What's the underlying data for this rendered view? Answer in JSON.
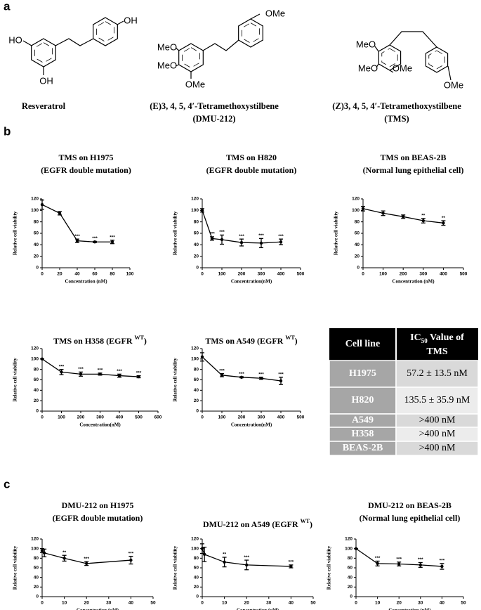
{
  "panels": [
    "a",
    "b",
    "c"
  ],
  "structures": [
    {
      "name": "Resveratrol",
      "substituents": [
        "HO",
        "OH",
        "OH"
      ]
    },
    {
      "name": "(E)3, 4, 5, 4′-Tetramethoxystilbene",
      "subname": "(DMU-212)",
      "substituents": [
        "MeO",
        "MeO",
        "OMe",
        "OMe"
      ]
    },
    {
      "name": "(Z)3, 4, 5, 4′-Tetramethoxystilbene",
      "subname": "(TMS)",
      "substituents": [
        "MeO",
        "MeO",
        "OMe",
        "OMe"
      ]
    }
  ],
  "chart_data": [
    {
      "type": "line",
      "title": "TMS on H1975",
      "subtitle": "(EGFR double mutation)",
      "ylabel": "Relative cell viability",
      "xlabel": "Concentration (nM)",
      "x": [
        0,
        20,
        40,
        60,
        80
      ],
      "values": [
        110,
        95,
        47,
        45,
        45
      ],
      "errors": [
        8,
        3,
        3,
        1,
        3
      ],
      "annotations": [
        null,
        null,
        "***",
        "***",
        "***"
      ],
      "xlim": [
        0,
        100
      ],
      "xticks": [
        0,
        20,
        40,
        60,
        80,
        100
      ],
      "ylim": [
        0,
        120
      ],
      "yticks": [
        0,
        20,
        40,
        60,
        80,
        100,
        120
      ],
      "color": "#000000"
    },
    {
      "type": "line",
      "title": "TMS on H820",
      "subtitle": "(EGFR double mutation)",
      "ylabel": "Relative cell viability",
      "xlabel": "Concentration(nM)",
      "x": [
        0,
        50,
        100,
        200,
        300,
        400
      ],
      "values": [
        100,
        51,
        49,
        44,
        43,
        45
      ],
      "errors": [
        3,
        3,
        8,
        6,
        8,
        5
      ],
      "annotations": [
        null,
        "***",
        "***",
        "***",
        "***",
        "***"
      ],
      "xlim": [
        0,
        500
      ],
      "xticks": [
        0,
        100,
        200,
        300,
        400,
        500
      ],
      "ylim": [
        0,
        120
      ],
      "yticks": [
        0,
        20,
        40,
        60,
        80,
        100,
        120
      ],
      "color": "#000000"
    },
    {
      "type": "line",
      "title": "TMS on BEAS-2B",
      "subtitle": "(Normal lung epithelial cell)",
      "ylabel": "Relative cell viability",
      "xlabel": "Concentration (nM)",
      "x": [
        0,
        100,
        200,
        300,
        400
      ],
      "values": [
        103,
        95,
        89,
        82,
        78
      ],
      "errors": [
        4,
        4,
        3,
        4,
        4
      ],
      "annotations": [
        null,
        null,
        null,
        "**",
        "**"
      ],
      "xlim": [
        0,
        500
      ],
      "xticks": [
        0,
        100,
        200,
        300,
        400,
        500
      ],
      "ylim": [
        0,
        120
      ],
      "yticks": [
        0,
        20,
        40,
        60,
        80,
        100,
        120
      ],
      "color": "#000000"
    },
    {
      "type": "line",
      "title": "TMS on H358 (EGFR",
      "title_superscript": "WT",
      "title_end": ")",
      "ylabel": "Relative cell viability",
      "xlabel": "Concentration(nM)",
      "x": [
        0,
        100,
        200,
        300,
        400,
        500
      ],
      "values": [
        100,
        75,
        71,
        71,
        68,
        66
      ],
      "errors": [
        0,
        5,
        4,
        2,
        3,
        2
      ],
      "annotations": [
        null,
        "***",
        "***",
        "***",
        "***",
        "***"
      ],
      "xlim": [
        0,
        600
      ],
      "xticks": [
        0,
        100,
        200,
        300,
        400,
        500,
        600
      ],
      "ylim": [
        0,
        120
      ],
      "yticks": [
        0,
        20,
        40,
        60,
        80,
        100,
        120
      ],
      "color": "#000000"
    },
    {
      "type": "line",
      "title": "TMS on A549 (EGFR",
      "title_superscript": "WT",
      "title_end": ")",
      "ylabel": "Relative cell viability",
      "xlabel": "Concentration(nM)",
      "x": [
        0,
        100,
        200,
        300,
        400
      ],
      "values": [
        104,
        69,
        65,
        63,
        58
      ],
      "errors": [
        8,
        3,
        1,
        2,
        7
      ],
      "annotations": [
        null,
        "***",
        "***",
        "***",
        "***"
      ],
      "xlim": [
        0,
        500
      ],
      "xticks": [
        0,
        100,
        200,
        300,
        400,
        500
      ],
      "ylim": [
        0,
        120
      ],
      "yticks": [
        0,
        20,
        40,
        60,
        80,
        100,
        120
      ],
      "color": "#000000"
    },
    {
      "type": "line",
      "title": "DMU-212 on H1975",
      "subtitle": "(EGFR double mutation)",
      "ylabel": "Relative cell viability",
      "xlabel": "Concentration (μM)",
      "x": [
        0,
        1,
        10,
        20,
        40
      ],
      "values": [
        96,
        91,
        80,
        69,
        76
      ],
      "errors": [
        4,
        8,
        6,
        4,
        8
      ],
      "annotations": [
        null,
        null,
        "**",
        "***",
        "***"
      ],
      "xlim": [
        0,
        50
      ],
      "xticks": [
        0,
        10,
        20,
        30,
        40,
        50
      ],
      "ylim": [
        0,
        120
      ],
      "yticks": [
        0,
        20,
        40,
        60,
        80,
        100,
        120
      ],
      "color": "#000000"
    },
    {
      "type": "line",
      "title": "DMU-212 on A549 (EGFR",
      "title_superscript": "WT",
      "title_end": ")",
      "ylabel": "Relative cell viability",
      "xlabel": "Concentration (μM)",
      "x": [
        0,
        1,
        10,
        20,
        40
      ],
      "values": [
        100,
        88,
        72,
        66,
        63
      ],
      "errors": [
        10,
        15,
        10,
        10,
        3
      ],
      "annotations": [
        null,
        null,
        "**",
        "***",
        "***"
      ],
      "xlim": [
        0,
        50
      ],
      "xticks": [
        0,
        10,
        20,
        30,
        40,
        50
      ],
      "ylim": [
        0,
        120
      ],
      "yticks": [
        0,
        20,
        40,
        60,
        80,
        100,
        120
      ],
      "color": "#000000"
    },
    {
      "type": "line",
      "title": "DMU-212 on BEAS-2B",
      "subtitle": "(Normal lung epithelial cell)",
      "ylabel": "Relative cell viability",
      "xlabel": "Concentration (μM)",
      "x": [
        0,
        10,
        20,
        30,
        40
      ],
      "values": [
        100,
        69,
        68,
        66,
        63
      ],
      "errors": [
        0,
        5,
        4,
        5,
        6
      ],
      "annotations": [
        null,
        "***",
        "***",
        "***",
        "***"
      ],
      "xlim": [
        0,
        50
      ],
      "xticks": [
        0,
        10,
        20,
        30,
        40,
        50
      ],
      "ylim": [
        0,
        120
      ],
      "yticks": [
        0,
        20,
        40,
        60,
        80,
        100,
        120
      ],
      "color": "#000000"
    }
  ],
  "table": {
    "header": {
      "cell_line": "Cell line",
      "ic": "IC",
      "ic_subscript": "50",
      "ic_rest": " Value  of",
      "ic_line2": "TMS"
    },
    "rows": [
      [
        "H1975",
        "57.2 ± 13.5 nM"
      ],
      [
        "H820",
        "135.5 ± 35.9 nM"
      ],
      [
        "A549",
        ">400 nM"
      ],
      [
        "H358",
        ">400 nM"
      ],
      [
        "BEAS-2B",
        ">400 nM"
      ]
    ]
  }
}
